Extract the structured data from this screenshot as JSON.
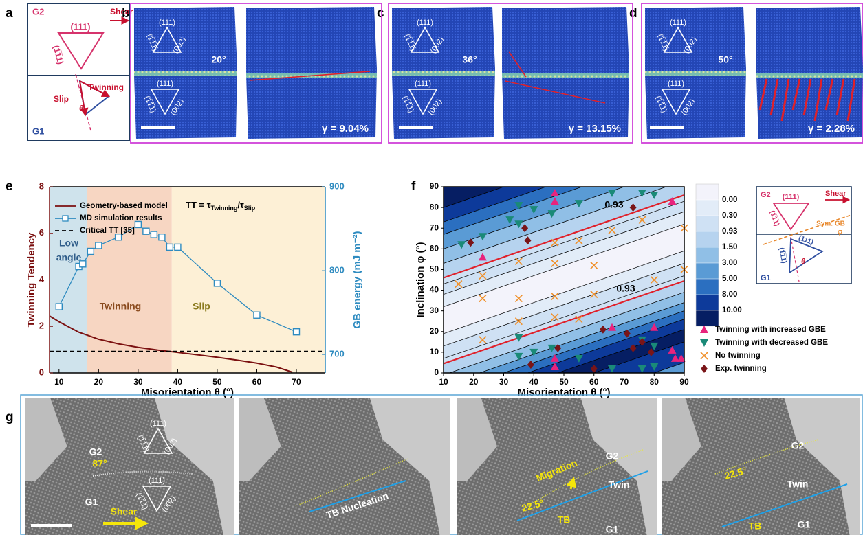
{
  "panel_labels": [
    "a",
    "b",
    "c",
    "d",
    "e",
    "f",
    "g"
  ],
  "miller": {
    "a": "(111)",
    "b": "(1̅1̅1)",
    "c": "(002)"
  },
  "panel_a": {
    "g2": "G2",
    "g1": "G1",
    "plane": "(111)",
    "plane2": "(1̅1̅1)",
    "shear": "Shear",
    "twinning": "Twinning",
    "slip": "Slip",
    "theta": "θ"
  },
  "panels_bcd": [
    {
      "angle": "20°",
      "strain": "γ = 9.04%"
    },
    {
      "angle": "36°",
      "strain": "γ = 13.15%"
    },
    {
      "angle": "50°",
      "strain": "γ = 2.28%"
    }
  ],
  "chart_data": [
    {
      "type": "line",
      "x_label": "Misorientation θ (°)",
      "y_label": "Twinning Tendency",
      "y2_label": "GB energy (mJ m⁻²)",
      "y_color": "#7b1010",
      "y2_color": "#2e8bc0",
      "annotation": [
        "TT = τ",
        "Twinning",
        "/τ",
        "Slip"
      ],
      "xlim": [
        7.6,
        77.3
      ],
      "xticks": [
        10,
        20,
        30,
        40,
        50,
        60,
        70
      ],
      "ylim": [
        0,
        8
      ],
      "yticks": [
        0,
        2,
        4,
        6,
        8
      ],
      "y2lim": [
        678,
        900
      ],
      "y2ticks": [
        700,
        800,
        900
      ],
      "regions": [
        {
          "label": [
            "Low",
            "angle"
          ],
          "from": 7.6,
          "to": 17,
          "color": "#cfe3ec",
          "text_color": "#2f5d8a"
        },
        {
          "label": [
            "Twinning"
          ],
          "from": 17,
          "to": 38.5,
          "color": "#f7d6c2",
          "text_color": "#8a4a1d"
        },
        {
          "label": [
            "Slip"
          ],
          "from": 38.5,
          "to": 77.3,
          "color": "#fdf0d6",
          "text_color": "#8a7a1d"
        }
      ],
      "series": [
        {
          "name": "Geometry-based model",
          "color": "#7b1010",
          "x": [
            7.6,
            10,
            15,
            20,
            25,
            30,
            35,
            40,
            45,
            50,
            55,
            60,
            65,
            69
          ],
          "values": [
            2.45,
            2.2,
            1.75,
            1.45,
            1.25,
            1.1,
            0.98,
            0.88,
            0.78,
            0.67,
            0.55,
            0.42,
            0.25,
            0.03
          ]
        },
        {
          "name": "MD simulation results",
          "color": "#2e8bc0",
          "axis": "y2",
          "marker": "square",
          "x": [
            10,
            15,
            16,
            18,
            20,
            25,
            30,
            32,
            34,
            36,
            38,
            40,
            50,
            60,
            70
          ],
          "values": [
            757,
            805,
            808,
            823,
            830,
            840,
            855,
            847,
            843,
            840,
            828,
            828,
            785,
            747,
            727
          ]
        },
        {
          "name": "Critical TT [35]",
          "color": "#000000",
          "dash": true,
          "y": 0.93
        }
      ]
    },
    {
      "type": "scatter",
      "x_label": "Misorientation θ (°)",
      "y_label": "Inclination φ (°)",
      "xlim": [
        10,
        90
      ],
      "xticks": [
        10,
        20,
        30,
        40,
        50,
        60,
        70,
        80,
        90
      ],
      "ylim": [
        0,
        90
      ],
      "yticks": [
        0,
        10,
        20,
        30,
        40,
        50,
        60,
        70,
        80,
        90
      ],
      "contour_labels": [
        0.93,
        0.93
      ],
      "colorbar": {
        "colors": [
          "#f3f3fb",
          "#e2ecf8",
          "#cfe1f4",
          "#b6d3ef",
          "#90bfe6",
          "#5a9bd5",
          "#2b6fc0",
          "#0d3a9a",
          "#061e63"
        ],
        "ticks": [
          {
            "value": 0,
            "label": "0.00"
          },
          {
            "value": 0.3,
            "label": "0.30"
          },
          0.93,
          {
            "value": 1.5,
            "label": "1.50"
          },
          {
            "value": 3,
            "label": "3.00"
          },
          {
            "value": 5,
            "label": "5.00"
          },
          {
            "value": 8,
            "label": "8.00"
          },
          {
            "value": 10,
            "label": "10.00"
          }
        ]
      },
      "series": [
        {
          "name": "Twinning with increased GBE",
          "color": "#e8237d",
          "marker": "triangle-up",
          "x": [
            47,
            47,
            23,
            66,
            80,
            86,
            47,
            47,
            86,
            87,
            89
          ],
          "values": [
            87,
            83,
            56,
            22,
            22,
            83,
            7,
            3,
            11,
            7,
            7
          ]
        },
        {
          "name": "Twinning with decreased GBE",
          "color": "#1a8a78",
          "marker": "triangle-down",
          "x": [
            16,
            23,
            32,
            35,
            35,
            40,
            46,
            55,
            66,
            76,
            80,
            35,
            35,
            40,
            46,
            55,
            66,
            76,
            80,
            80,
            76
          ],
          "values": [
            62,
            66,
            74,
            81,
            72,
            79,
            77,
            82,
            87,
            87,
            86,
            17,
            8,
            10,
            12,
            7,
            2,
            16,
            13,
            3,
            2
          ]
        },
        {
          "name": "No twinning",
          "color": "#f0902a",
          "marker": "x",
          "x": [
            15,
            23,
            23,
            23,
            35,
            35,
            35,
            47,
            47,
            47,
            47,
            55,
            55,
            60,
            60,
            66,
            76,
            80,
            90,
            90
          ],
          "values": [
            43,
            47,
            36,
            16,
            54,
            36,
            25,
            63,
            53,
            37,
            27,
            64,
            26,
            52,
            38,
            69,
            74,
            45,
            70,
            50
          ]
        },
        {
          "name": "Exp. twinning",
          "color": "#7a1518",
          "marker": "diamond",
          "x": [
            19,
            37,
            38,
            39,
            48,
            63,
            71,
            73,
            73,
            76,
            79,
            60
          ],
          "values": [
            63,
            70,
            64,
            4,
            12,
            21,
            19,
            80,
            12,
            15,
            10,
            2
          ]
        }
      ]
    }
  ],
  "panel_f_schematic": {
    "g2": "G2",
    "g1": "G1",
    "shear": "Shear",
    "gb": "Sym. GB",
    "phi": "φ",
    "theta": "θ",
    "top_plane": "(111)",
    "top_plane2": "(1̅1̅1)",
    "bottom_plane": "(111)",
    "bottom_plane2": "(1̅1̅1)"
  },
  "panel_g": {
    "g2": "G2",
    "g1": "G1",
    "twin": "Twin",
    "tb": "TB",
    "angle1": "87°",
    "angle2": "22.5°",
    "shear": "Shear",
    "nucleation": "TB Nucleation",
    "migration": "Migration"
  }
}
